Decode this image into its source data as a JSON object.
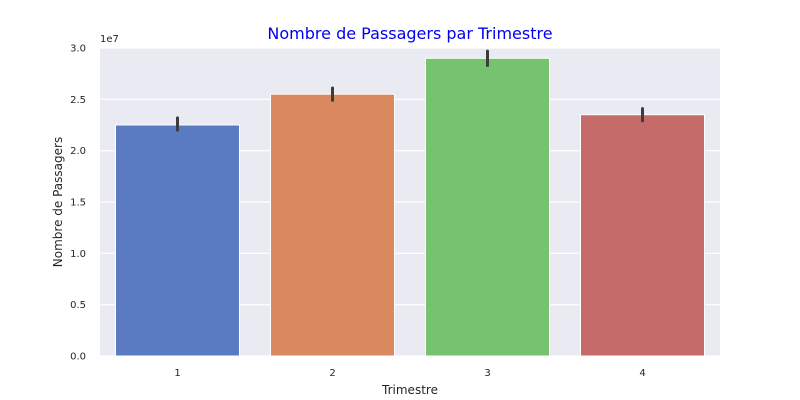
{
  "chart_data": {
    "type": "bar",
    "title": "Nombre de Passagers par Trimestre",
    "xlabel": "Trimestre",
    "ylabel": "Nombre de Passagers",
    "offset_text": "1e7",
    "categories": [
      "1",
      "2",
      "3",
      "4"
    ],
    "values": [
      2.25,
      2.55,
      2.9,
      2.35
    ],
    "error_bars": [
      {
        "low": 2.2,
        "high": 2.32
      },
      {
        "low": 2.49,
        "high": 2.61
      },
      {
        "low": 2.83,
        "high": 2.97
      },
      {
        "low": 2.29,
        "high": 2.41
      }
    ],
    "ylim": [
      0,
      3.0
    ],
    "yticks": [
      "0.0",
      "0.5",
      "1.0",
      "1.5",
      "2.0",
      "2.5",
      "3.0"
    ],
    "ytick_values": [
      0,
      0.5,
      1.0,
      1.5,
      2.0,
      2.5,
      3.0
    ],
    "grid": true,
    "colors": [
      "#5a7bc1",
      "#da885e",
      "#75c26f",
      "#c56c6b"
    ],
    "plot_background": "#eaeaf2",
    "title_color": "#0000ee",
    "error_bar_color": "#3c3c3c"
  }
}
